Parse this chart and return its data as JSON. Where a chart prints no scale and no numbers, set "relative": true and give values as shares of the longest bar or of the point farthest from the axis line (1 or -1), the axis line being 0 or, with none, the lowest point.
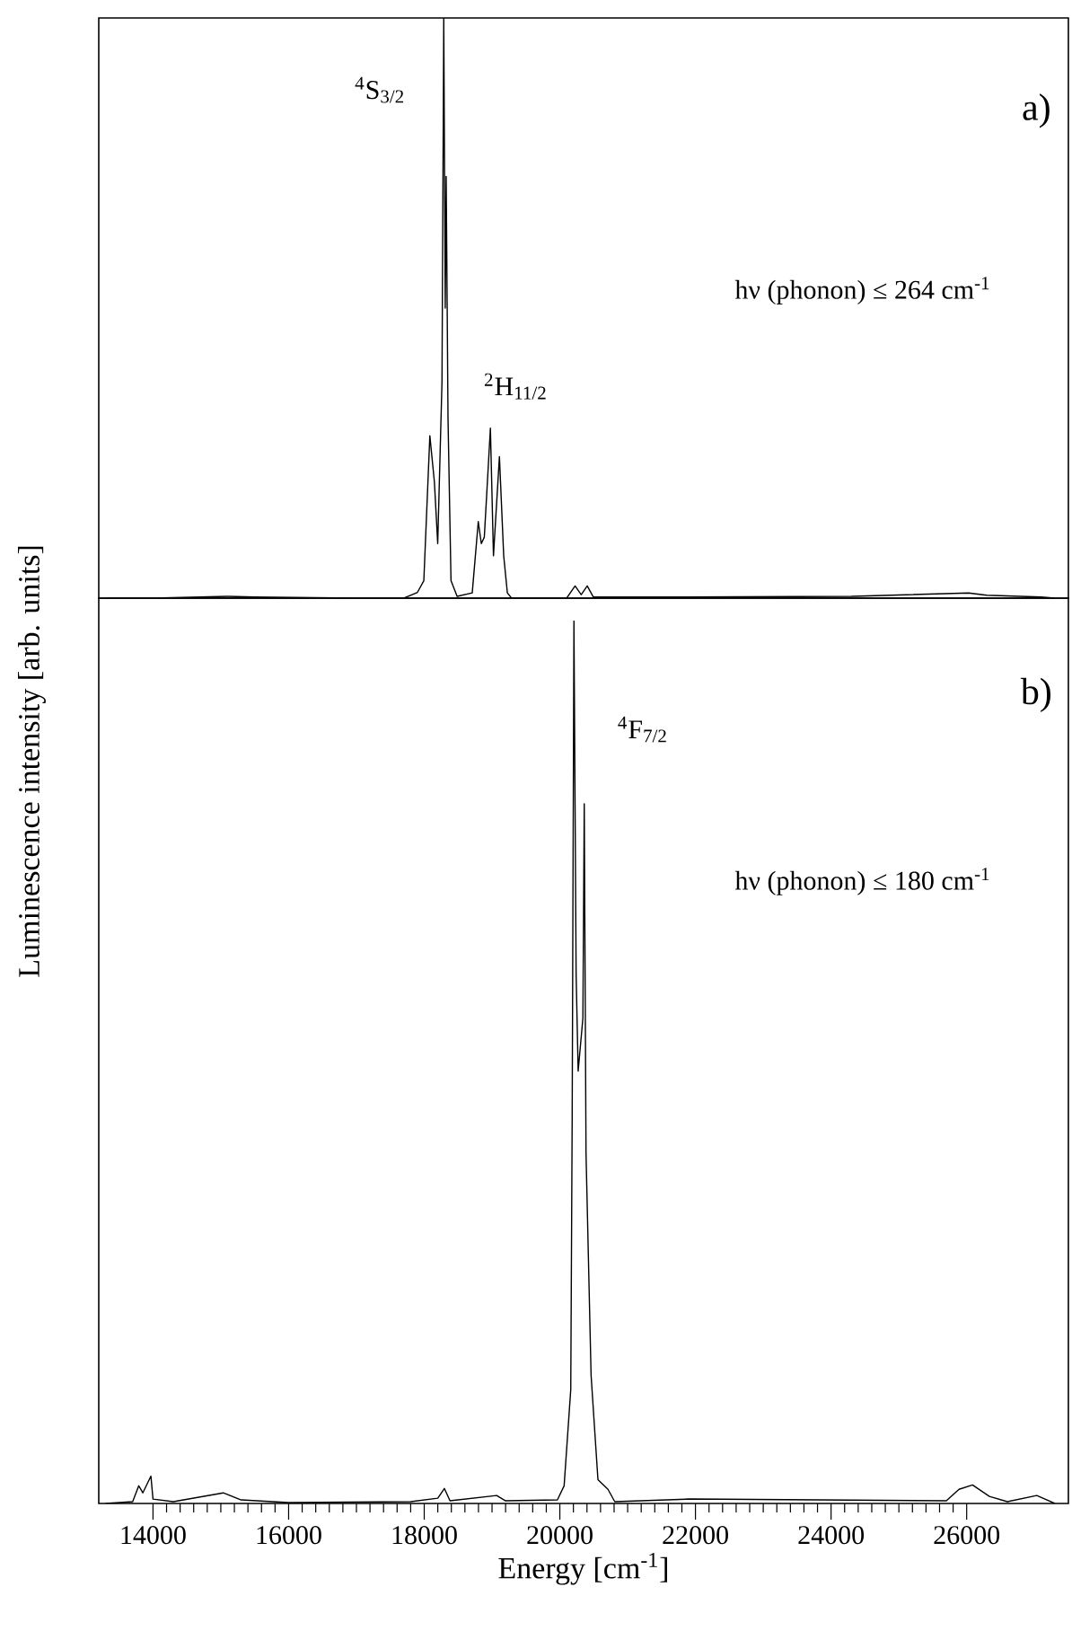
{
  "chart_data": [
    {
      "type": "line",
      "relative": true,
      "tick_labels": false,
      "xlim": [
        13200,
        27500
      ],
      "annotations": [
        "$^{4}$S$_{3/2}$",
        "$^{2}$H$_{11/2}$",
        "a)",
        "hν (phonon) ≤ 264 cm$^{-1}$"
      ],
      "series": [
        {
          "color": "#000000",
          "x": [
            13300,
            14000,
            15100,
            15500,
            17000,
            17700,
            17900,
            17994,
            18083,
            18150,
            18199,
            18262,
            18288,
            18310,
            18324,
            18351,
            18395,
            18485,
            18708,
            18797,
            18842,
            18886,
            18976,
            19021,
            19109,
            19172,
            19226,
            19288,
            20100,
            20225,
            20315,
            20404,
            20493,
            21800,
            24300,
            26029,
            26296,
            27100,
            27300
          ],
          "values": [
            0,
            0,
            0.003,
            0.002,
            0,
            0,
            0.01,
            0.03,
            0.28,
            0.2,
            0.094,
            0.373,
            1,
            0.5,
            0.727,
            0.309,
            0.03,
            0.003,
            0.009,
            0.132,
            0.094,
            0.105,
            0.293,
            0.073,
            0.244,
            0.073,
            0.009,
            0,
            0,
            0.021,
            0.006,
            0.021,
            0.002,
            0.002,
            0.003,
            0.009,
            0.005,
            0.002,
            0
          ]
        }
      ]
    },
    {
      "type": "line",
      "relative": true,
      "tick_labels": "x",
      "xlim": [
        13200,
        27500
      ],
      "xticks": [
        14000,
        16000,
        18000,
        20000,
        22000,
        24000,
        26000
      ],
      "xlabel": "Energy [cm$^{-1}$]",
      "ylabel": "Luminescence intensity [arb. units]",
      "annotations": [
        "$^{4}$F$_{7/2}$",
        "b)",
        "hν (phonon) ≤ 180 cm$^{-1}$"
      ],
      "series": [
        {
          "color": "#000000",
          "x": [
            13300,
            13700,
            13790,
            13850,
            13969,
            14000,
            14300,
            15035,
            15300,
            16000,
            17800,
            18200,
            18297,
            18380,
            19068,
            19200,
            19964,
            20063,
            20161,
            20182,
            20208,
            20240,
            20270,
            20340,
            20360,
            20386,
            20461,
            20562,
            20710,
            20810,
            21905,
            25700,
            25887,
            26086,
            26335,
            26600,
            27034,
            27300
          ],
          "values": [
            0,
            0.002,
            0.02,
            0.012,
            0.031,
            0.005,
            0.002,
            0.012,
            0.004,
            0.001,
            0.002,
            0.006,
            0.017,
            0.003,
            0.009,
            0.003,
            0.004,
            0.02,
            0.129,
            0.44,
            1,
            0.6,
            0.49,
            0.55,
            0.793,
            0.397,
            0.145,
            0.027,
            0.016,
            0.002,
            0.005,
            0.003,
            0.016,
            0.021,
            0.008,
            0.002,
            0.009,
            0
          ]
        }
      ]
    }
  ]
}
